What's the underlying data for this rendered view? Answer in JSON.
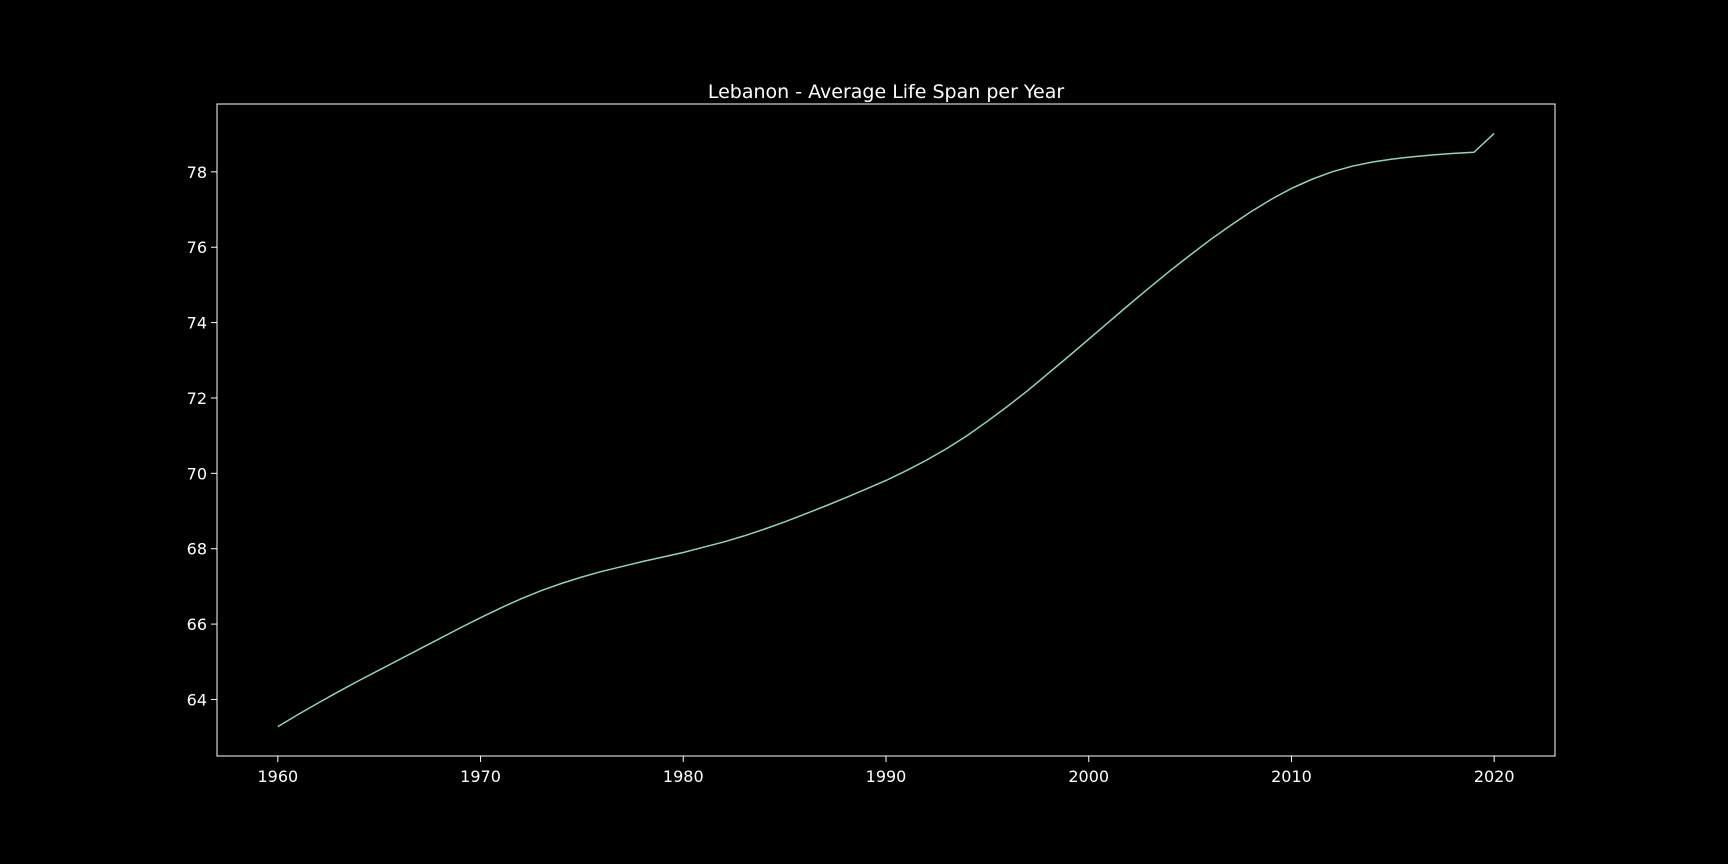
{
  "chart_data": {
    "type": "line",
    "title": "Lebanon - Average Life Span per Year",
    "xlabel": "",
    "ylabel": "",
    "xlim": [
      1957,
      2023
    ],
    "ylim": [
      62.5,
      79.8
    ],
    "x_ticks": [
      1960,
      1970,
      1980,
      1990,
      2000,
      2010,
      2020
    ],
    "y_ticks": [
      64,
      66,
      68,
      70,
      72,
      74,
      76,
      78
    ],
    "grid": false,
    "legend": "none",
    "line_color": "#8dd3c7",
    "background_color": "#000000",
    "series": [
      {
        "x": [
          1960,
          1961,
          1962,
          1963,
          1964,
          1965,
          1966,
          1967,
          1968,
          1969,
          1970,
          1971,
          1972,
          1973,
          1974,
          1975,
          1976,
          1977,
          1978,
          1979,
          1980,
          1981,
          1982,
          1983,
          1984,
          1985,
          1986,
          1987,
          1988,
          1989,
          1990,
          1991,
          1992,
          1993,
          1994,
          1995,
          1996,
          1997,
          1998,
          1999,
          2000,
          2001,
          2002,
          2003,
          2004,
          2005,
          2006,
          2007,
          2008,
          2009,
          2010,
          2011,
          2012,
          2013,
          2014,
          2015,
          2016,
          2017,
          2018,
          2019,
          2020
        ],
        "values": [
          63.28,
          63.6,
          63.91,
          64.21,
          64.5,
          64.78,
          65.06,
          65.34,
          65.62,
          65.9,
          66.17,
          66.43,
          66.67,
          66.89,
          67.08,
          67.25,
          67.4,
          67.53,
          67.66,
          67.78,
          67.9,
          68.04,
          68.18,
          68.34,
          68.52,
          68.71,
          68.92,
          69.13,
          69.35,
          69.58,
          69.81,
          70.07,
          70.35,
          70.66,
          71.0,
          71.38,
          71.78,
          72.2,
          72.65,
          73.1,
          73.56,
          74.02,
          74.48,
          74.93,
          75.37,
          75.79,
          76.2,
          76.58,
          76.94,
          77.27,
          77.56,
          77.8,
          78.0,
          78.15,
          78.26,
          78.34,
          78.4,
          78.45,
          78.49,
          78.52,
          79.02
        ]
      }
    ]
  }
}
